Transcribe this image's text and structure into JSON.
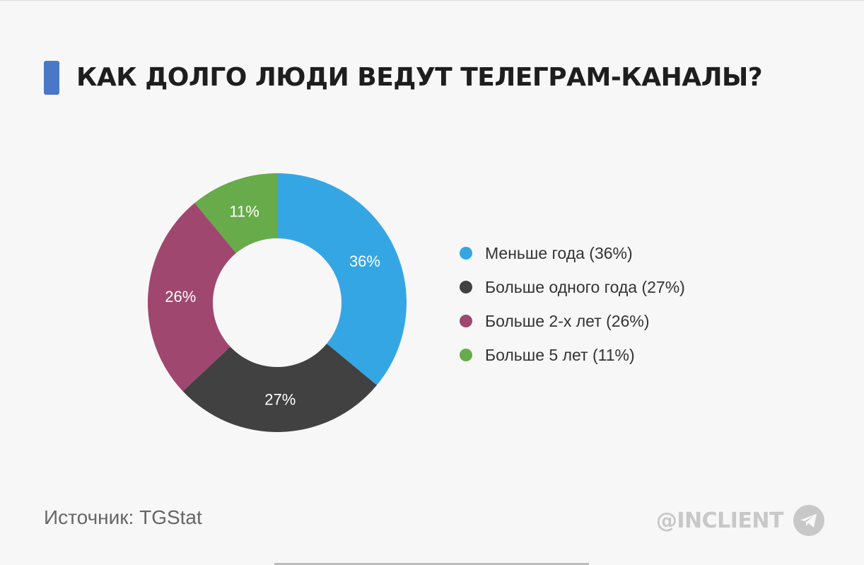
{
  "header": {
    "title": "КАК ДОЛГО ЛЮДИ ВЕДУТ ТЕЛЕГРАМ-КАНАЛЫ?",
    "accent_color": "#4a78c6"
  },
  "chart_data": {
    "type": "pie",
    "donut": true,
    "title": "КАК ДОЛГО ЛЮДИ ВЕДУТ ТЕЛЕГРАМ-КАНАЛЫ?",
    "legend_position": "right",
    "categories": [
      "Меньше года",
      "Больше одного года",
      "Больше 2-х лет",
      "Больше 5 лет"
    ],
    "values": [
      36,
      27,
      26,
      11
    ],
    "slice_labels": [
      "36%",
      "27%",
      "26%",
      "11%"
    ],
    "legend_labels": [
      "Меньше года (36%)",
      "Больше одного года (27%)",
      "Больше 2-х лет (26%)",
      "Больше 5 лет (11%)"
    ],
    "colors": [
      "#35a6e4",
      "#414141",
      "#a0476f",
      "#67ab4a"
    ]
  },
  "footer": {
    "source": "Источник: TGStat",
    "brand": "@INCLIENT",
    "brand_icon": "telegram-icon"
  }
}
